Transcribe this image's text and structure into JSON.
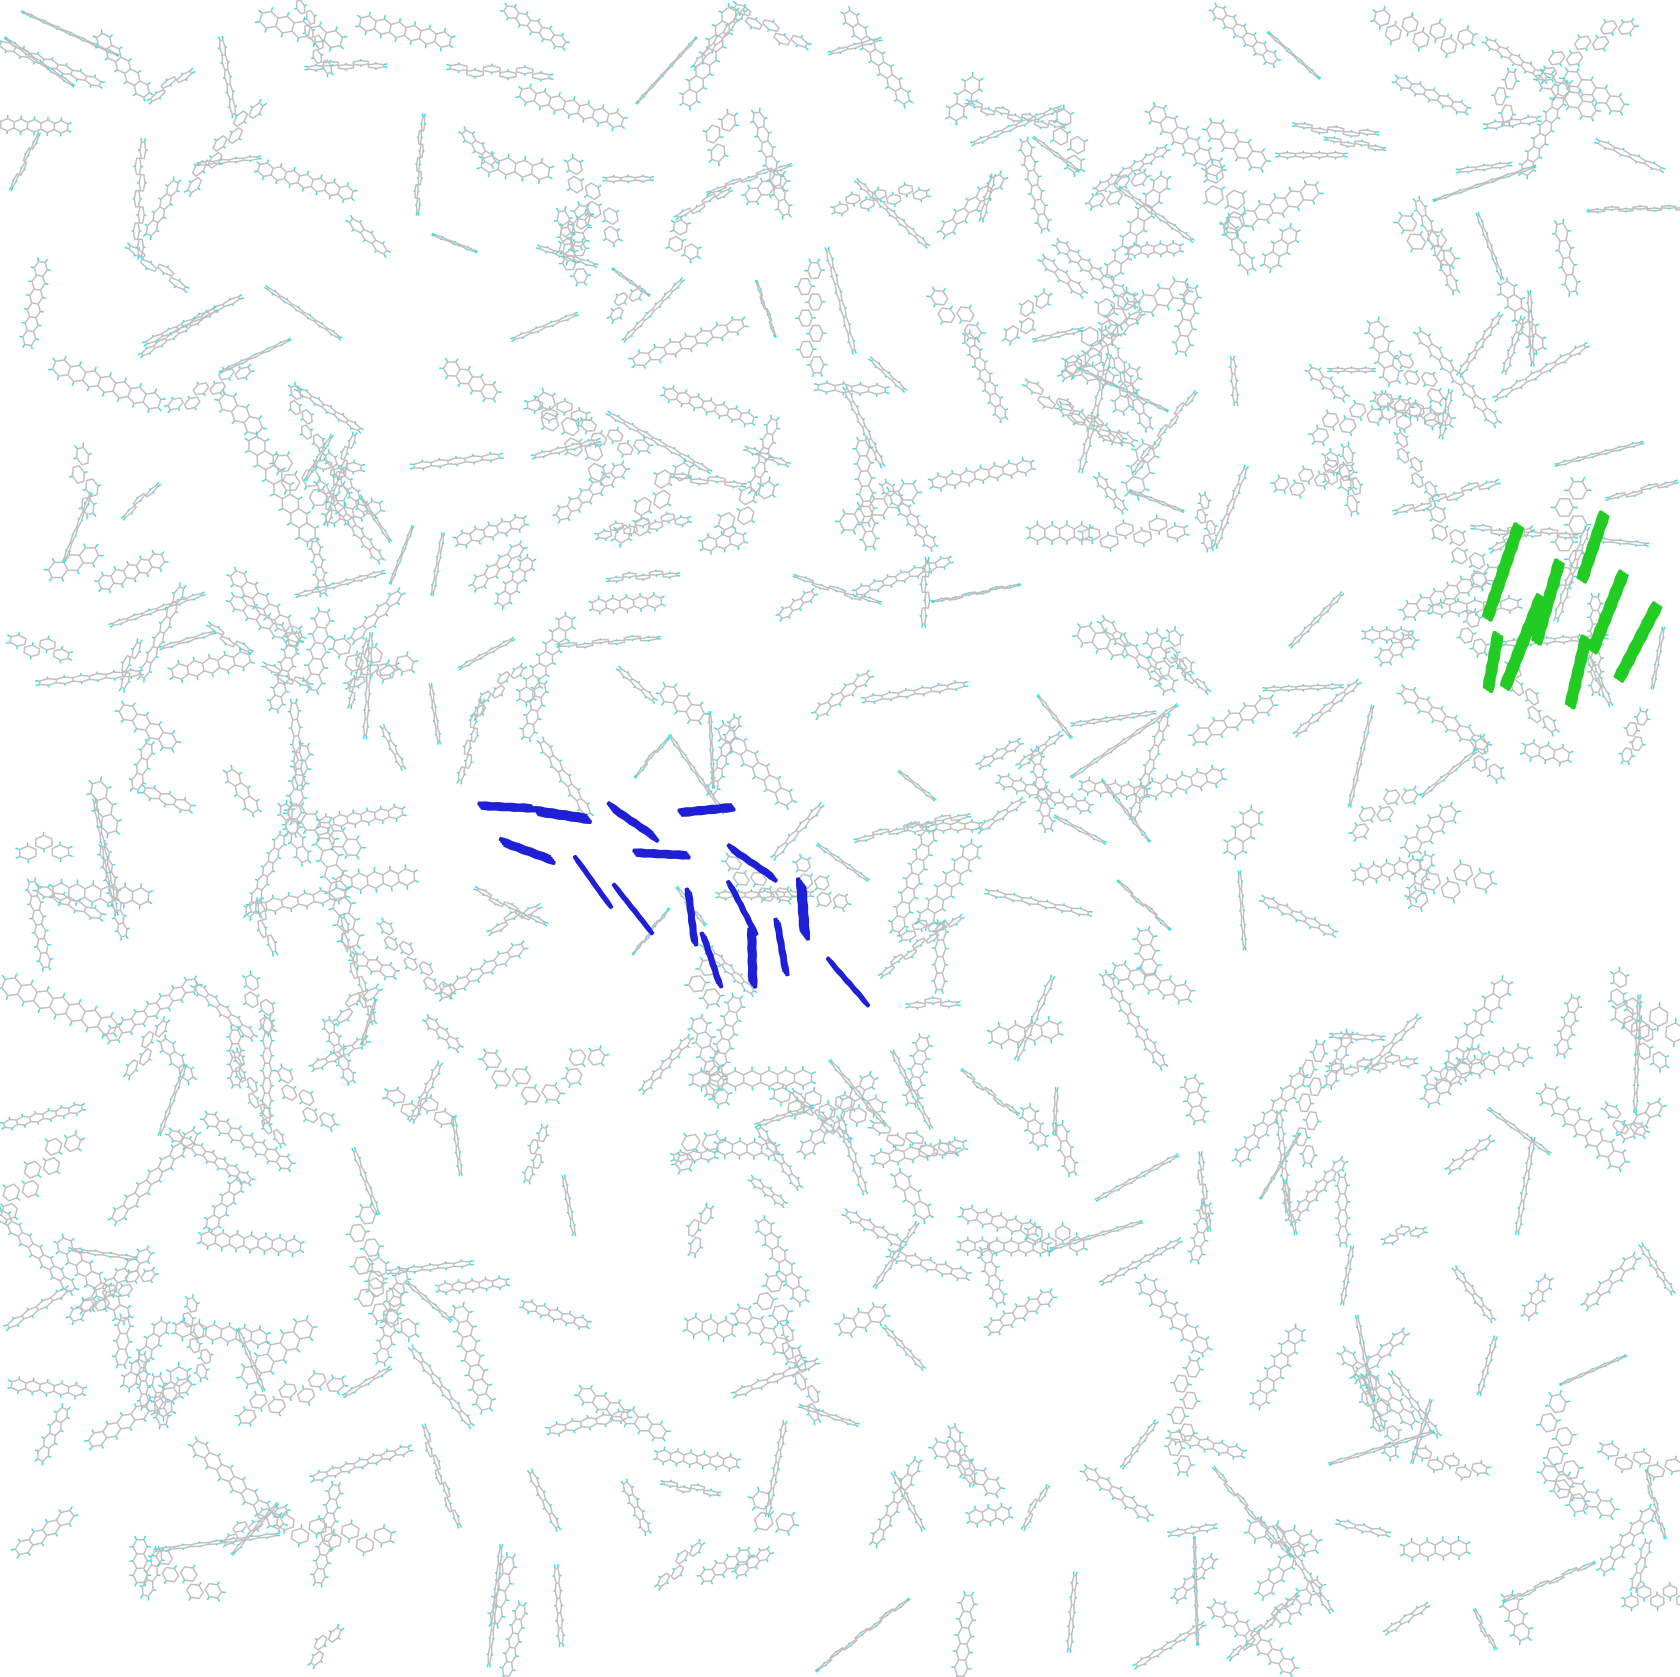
{
  "scene": {
    "description_visible_text": "",
    "background_color": "#ffffff",
    "bond_color": "#c0c0c0",
    "hydrogen_color": "#40e0e0",
    "highlight_primary_color": "#1f1fd6",
    "highlight_secondary_color": "#22cc22",
    "representation": "licorice-sticks",
    "molecule_class": "polyaromatic-hydrocarbon",
    "molecule_motif": "fused-ring-chain"
  }
}
